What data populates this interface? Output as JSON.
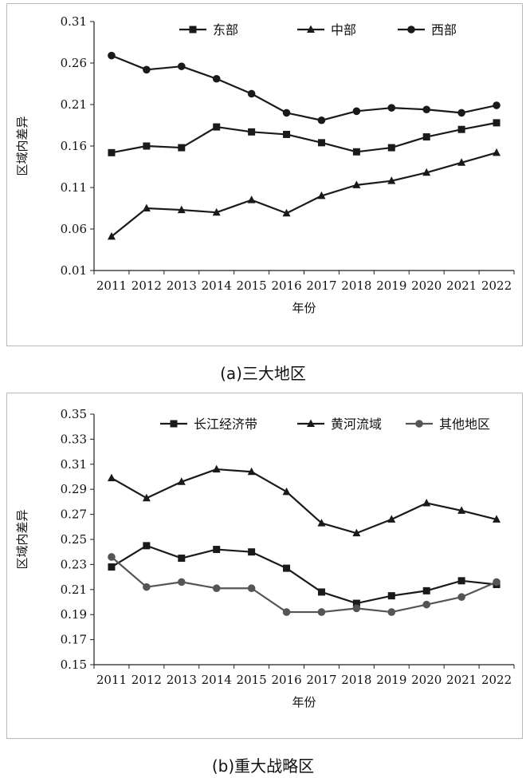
{
  "chart_data": [
    {
      "type": "line",
      "caption": "(a)三大地区",
      "xlabel": "年份",
      "ylabel": "区域内差异",
      "categories": [
        "2011",
        "2012",
        "2013",
        "2014",
        "2015",
        "2016",
        "2017",
        "2018",
        "2019",
        "2020",
        "2021",
        "2022"
      ],
      "ylim": [
        0.01,
        0.31
      ],
      "yticks": [
        "0.01",
        "0.06",
        "0.11",
        "0.16",
        "0.21",
        "0.26",
        "0.31"
      ],
      "legend_position": "top",
      "series": [
        {
          "name": "东部",
          "marker": "square",
          "color": "#1a1a1a",
          "values": [
            0.152,
            0.16,
            0.158,
            0.183,
            0.177,
            0.174,
            0.164,
            0.153,
            0.158,
            0.171,
            0.18,
            0.188
          ]
        },
        {
          "name": "中部",
          "marker": "triangle",
          "color": "#1a1a1a",
          "values": [
            0.051,
            0.085,
            0.083,
            0.08,
            0.095,
            0.079,
            0.1,
            0.113,
            0.118,
            0.128,
            0.14,
            0.152
          ]
        },
        {
          "name": "西部",
          "marker": "circle",
          "color": "#1a1a1a",
          "values": [
            0.269,
            0.252,
            0.256,
            0.241,
            0.223,
            0.2,
            0.191,
            0.202,
            0.206,
            0.204,
            0.2,
            0.209
          ]
        }
      ]
    },
    {
      "type": "line",
      "caption": "(b)重大战略区",
      "xlabel": "年份",
      "ylabel": "区域内差异",
      "categories": [
        "2011",
        "2012",
        "2013",
        "2014",
        "2015",
        "2016",
        "2017",
        "2018",
        "2019",
        "2020",
        "2021",
        "2022"
      ],
      "ylim": [
        0.15,
        0.35
      ],
      "yticks": [
        "0.15",
        "0.17",
        "0.19",
        "0.21",
        "0.23",
        "0.25",
        "0.27",
        "0.29",
        "0.31",
        "0.33",
        "0.35"
      ],
      "legend_position": "top",
      "series": [
        {
          "name": "长江经济带",
          "marker": "square",
          "color": "#1a1a1a",
          "values": [
            0.228,
            0.245,
            0.235,
            0.242,
            0.24,
            0.227,
            0.208,
            0.199,
            0.205,
            0.209,
            0.217,
            0.214
          ]
        },
        {
          "name": "黄河流域",
          "marker": "triangle",
          "color": "#1a1a1a",
          "values": [
            0.299,
            0.283,
            0.296,
            0.306,
            0.304,
            0.288,
            0.263,
            0.255,
            0.266,
            0.279,
            0.273,
            0.266
          ]
        },
        {
          "name": "其他地区",
          "marker": "circle",
          "color": "#555555",
          "values": [
            0.236,
            0.212,
            0.216,
            0.211,
            0.211,
            0.192,
            0.192,
            0.195,
            0.192,
            0.198,
            0.204,
            0.216
          ]
        }
      ]
    }
  ]
}
